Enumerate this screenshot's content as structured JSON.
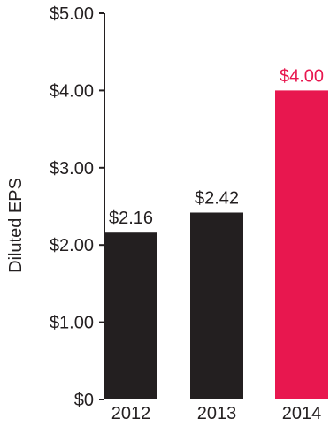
{
  "chart_data": {
    "type": "bar",
    "ylabel": "Diluted EPS",
    "xlabel": "",
    "title": "",
    "ylim": [
      0,
      5
    ],
    "yticks": [
      {
        "value": 0,
        "label": "$0"
      },
      {
        "value": 1,
        "label": "$1.00"
      },
      {
        "value": 2,
        "label": "$2.00"
      },
      {
        "value": 3,
        "label": "$3.00"
      },
      {
        "value": 4,
        "label": "$4.00"
      },
      {
        "value": 5,
        "label": "$5.00"
      }
    ],
    "categories": [
      "2012",
      "2013",
      "2014"
    ],
    "values": [
      2.16,
      2.42,
      4.0
    ],
    "value_labels": [
      "$2.16",
      "$2.42",
      "$4.00"
    ],
    "colors": [
      "#231f20",
      "#231f20",
      "#e8174f"
    ],
    "grid": false,
    "legend": "none"
  }
}
